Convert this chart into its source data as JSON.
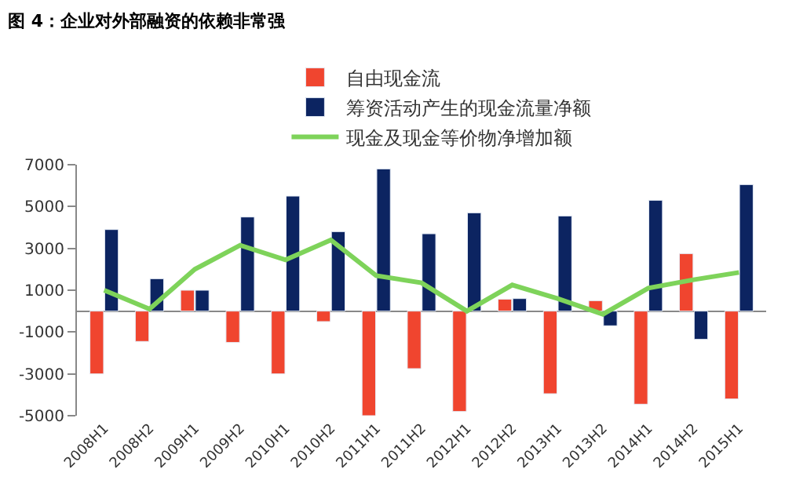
{
  "chart_data": {
    "type": "bar",
    "title": "图 4：企业对外部融资的依赖非常强",
    "categories": [
      "2008H1",
      "2008H2",
      "2009H1",
      "2009H2",
      "2010H1",
      "2010H2",
      "2011H1",
      "2011H2",
      "2012H1",
      "2012H2",
      "2013H1",
      "2013H2",
      "2014H1",
      "2014H2",
      "2015H1"
    ],
    "series": [
      {
        "name": "自由现金流",
        "color": "#f0452f",
        "values": [
          -3000,
          -1450,
          1000,
          -1500,
          -3000,
          -500,
          -5000,
          -2750,
          -4800,
          570,
          -3950,
          500,
          -4450,
          2750,
          -4200
        ]
      },
      {
        "name": "筹资活动产生的现金流量净额",
        "color": "#0c2461",
        "values": [
          3900,
          1550,
          1000,
          4500,
          5500,
          3800,
          6800,
          3700,
          4700,
          600,
          4550,
          -700,
          5300,
          -1350,
          6050
        ]
      },
      {
        "name": "现金及现金等价物净增加额",
        "color": "#7ed35a",
        "type": "line",
        "values": [
          1000,
          100,
          2000,
          3150,
          2450,
          3400,
          1700,
          1350,
          0,
          1250,
          600,
          -150,
          1100,
          1500,
          1850
        ]
      }
    ],
    "ylim": [
      -5000,
      7000
    ],
    "yticks": [
      -5000,
      -3000,
      -1000,
      1000,
      3000,
      5000,
      7000
    ],
    "legend": "top",
    "marker": "none"
  }
}
